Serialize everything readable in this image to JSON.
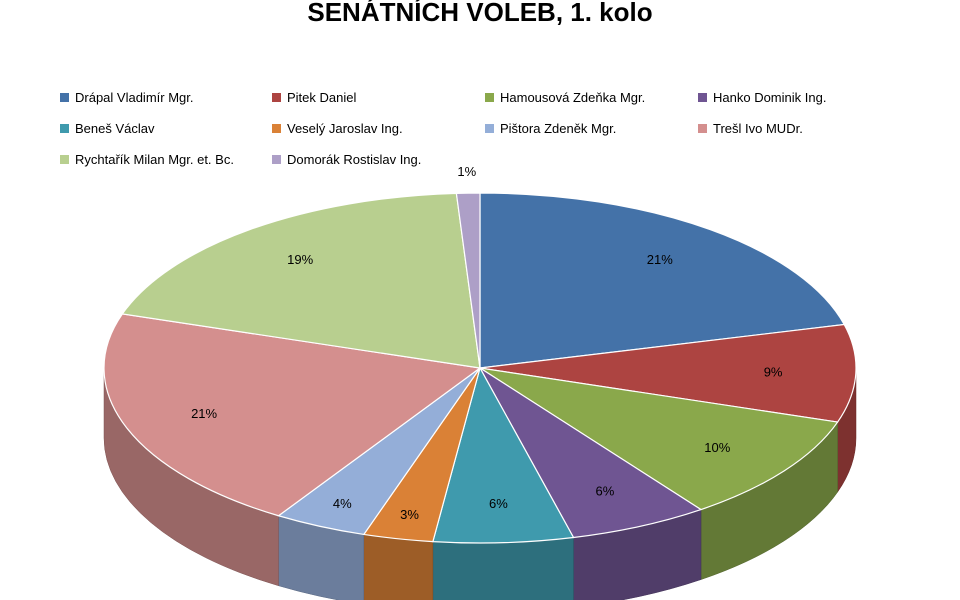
{
  "chart_data": {
    "type": "pie",
    "title": "SENÁTNÍCH VOLEB, 1. kolo",
    "legend_position": "top",
    "slices": [
      {
        "label": "Drápal Vladimír  Mgr.",
        "value": 21,
        "display": "21%",
        "color": "#4472a8"
      },
      {
        "label": "Pitek Daniel",
        "value": 9,
        "display": "9%",
        "color": "#ad4441"
      },
      {
        "label": "Hamousová Zdeňka Mgr.",
        "value": 10,
        "display": "10%",
        "color": "#8aa84b"
      },
      {
        "label": "Hanko Dominik Ing.",
        "value": 6,
        "display": "6%",
        "color": "#6f5592"
      },
      {
        "label": "Beneš Václav",
        "value": 6,
        "display": "6%",
        "color": "#3f9aad"
      },
      {
        "label": "Veselý Jaroslav Ing.",
        "value": 3,
        "display": "3%",
        "color": "#da8136"
      },
      {
        "label": "Pištora Zdeněk Mgr.",
        "value": 4,
        "display": "4%",
        "color": "#94aed8"
      },
      {
        "label": "Trešl Ivo MUDr.",
        "value": 21,
        "display": "21%",
        "color": "#d48f8e"
      },
      {
        "label": "Rychtařík Milan Mgr. et. Bc.",
        "value": 19,
        "display": "19%",
        "color": "#b8cf8f"
      },
      {
        "label": "Domorák Rostislav  Ing.",
        "value": 1,
        "display": "1%",
        "color": "#ad9fc7"
      }
    ]
  }
}
